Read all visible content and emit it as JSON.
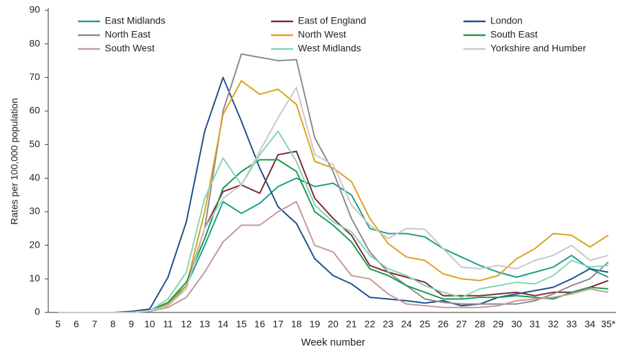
{
  "chart_data": {
    "type": "line",
    "y_label": "Rates per 100,000 population",
    "x_label": "Week number",
    "categories": [
      "5",
      "6",
      "7",
      "8",
      "9",
      "10",
      "11",
      "12",
      "13",
      "14",
      "15",
      "16",
      "17",
      "18",
      "19",
      "20",
      "21",
      "22",
      "23",
      "24",
      "25",
      "26",
      "27",
      "28",
      "29",
      "30",
      "31",
      "32",
      "33",
      "34",
      "35*"
    ],
    "ylim": [
      0,
      90
    ],
    "yticks": [
      0,
      10,
      20,
      30,
      40,
      50,
      60,
      70,
      80,
      90
    ],
    "series": [
      {
        "name": "East Midlands",
        "color": "#1a9e8a",
        "values": [
          0,
          0,
          0,
          0,
          0,
          0.5,
          3,
          8,
          20,
          33,
          29.5,
          32.5,
          37.5,
          40,
          37.5,
          38.5,
          35,
          25,
          23.5,
          23.5,
          22.5,
          19,
          16.5,
          14,
          12,
          10.5,
          12,
          13.5,
          17,
          13,
          10.5
        ]
      },
      {
        "name": "East of England",
        "color": "#7b2a34",
        "values": [
          0,
          0,
          0,
          0,
          0,
          0.5,
          2,
          8,
          25,
          36,
          38,
          35.5,
          47,
          48,
          34,
          28,
          23,
          14,
          12,
          10.5,
          9,
          5,
          5,
          5,
          5.5,
          6,
          5,
          6,
          6,
          7.5,
          9.5
        ]
      },
      {
        "name": "London",
        "color": "#1f4e8c",
        "values": [
          0,
          0,
          0,
          0,
          0.3,
          1,
          10.5,
          27,
          54,
          70,
          57,
          43,
          31.5,
          26.5,
          16,
          11,
          8.5,
          4.5,
          4,
          3.5,
          2.8,
          3.5,
          2,
          2.5,
          4.5,
          5.5,
          6.5,
          7.5,
          10,
          13,
          12
        ]
      },
      {
        "name": "North East",
        "color": "#8a8a8e",
        "values": [
          0,
          0,
          0,
          0,
          0,
          0.5,
          2,
          8,
          25,
          60,
          77,
          76,
          75,
          75.3,
          52,
          42,
          28,
          18,
          12,
          8,
          4,
          3,
          2.5,
          2.5,
          2.5,
          2.5,
          3.5,
          5.5,
          8,
          10,
          15
        ]
      },
      {
        "name": "North West",
        "color": "#dba21e",
        "values": [
          0,
          0,
          0,
          0,
          0,
          0.5,
          2.5,
          8,
          30,
          59,
          69,
          65,
          66.5,
          62,
          45,
          43,
          39,
          28,
          20.5,
          16.5,
          15.5,
          11.5,
          10,
          9.5,
          11,
          16,
          19,
          23.5,
          23,
          19.5,
          23
        ]
      },
      {
        "name": "South East",
        "color": "#1a9a4a",
        "values": [
          0,
          0,
          0,
          0,
          0,
          0.5,
          3,
          9,
          22,
          37,
          42,
          45.5,
          45.5,
          42,
          30,
          26,
          21,
          13,
          11,
          8,
          6,
          4,
          4,
          4.5,
          4.5,
          5,
          4.5,
          4,
          6,
          7.5,
          7
        ]
      },
      {
        "name": "South West",
        "color": "#c29a98",
        "values": [
          0,
          0,
          0,
          0,
          0,
          0.3,
          1.5,
          4.5,
          12,
          21,
          26,
          26,
          30,
          33,
          20,
          18,
          11,
          10,
          5.5,
          2.5,
          2,
          1.5,
          1.5,
          1.5,
          2,
          3.5,
          4,
          4.5,
          5.5,
          7,
          6
        ]
      },
      {
        "name": "West Midlands",
        "color": "#86d4b4",
        "values": [
          0,
          0,
          0,
          0,
          0,
          0.5,
          4,
          12,
          34,
          46,
          38,
          47,
          54,
          45,
          32,
          27,
          24,
          17,
          13,
          11,
          8,
          6,
          4.5,
          7,
          8,
          9,
          8.5,
          11,
          15.5,
          13.5,
          14
        ]
      },
      {
        "name": "Yorkshire and Humber",
        "color": "#c8c8cc",
        "values": [
          0,
          0,
          0,
          0,
          0,
          0.5,
          2,
          7,
          25,
          34,
          38,
          48,
          58,
          67,
          47,
          44,
          32,
          26,
          22,
          25,
          24.8,
          19,
          13.5,
          13,
          14,
          13,
          15.5,
          17,
          20,
          15.5,
          17
        ]
      }
    ]
  }
}
